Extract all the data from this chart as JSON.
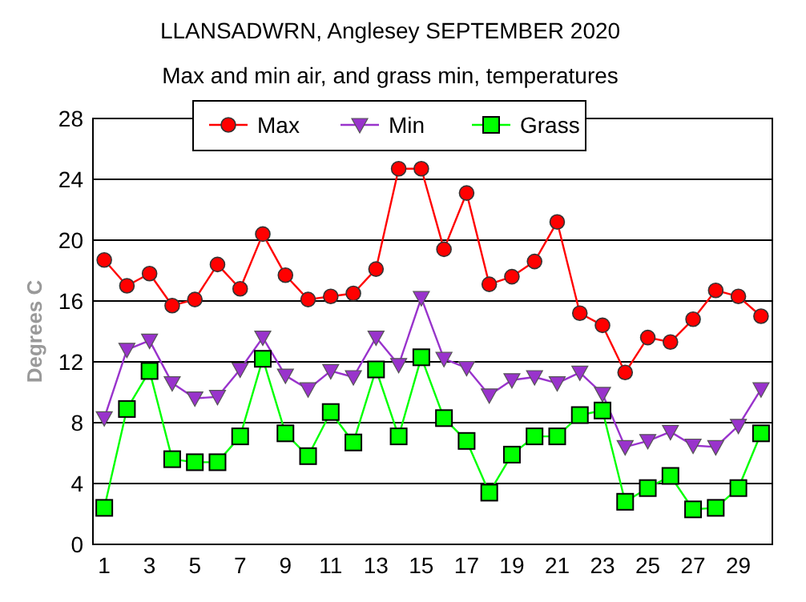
{
  "chart_data": {
    "type": "line",
    "title": "LLANSADWRN, Anglesey SEPTEMBER 2020",
    "subtitle": "Max and min air, and grass min, temperatures",
    "ylabel": "Degrees C",
    "x": [
      1,
      2,
      3,
      4,
      5,
      6,
      7,
      8,
      9,
      10,
      11,
      12,
      13,
      14,
      15,
      16,
      17,
      18,
      19,
      20,
      21,
      22,
      23,
      24,
      25,
      26,
      27,
      28,
      29,
      30
    ],
    "xlim": [
      0.5,
      30.5
    ],
    "xticks": [
      1,
      3,
      5,
      7,
      9,
      11,
      13,
      15,
      17,
      19,
      21,
      23,
      25,
      27,
      29
    ],
    "ylim": [
      0,
      28
    ],
    "yticks": [
      0,
      4,
      8,
      12,
      16,
      20,
      24,
      28
    ],
    "grid": "y",
    "legend": "top",
    "series": [
      {
        "name": "Max",
        "color": "#ff0000",
        "marker": "circle",
        "values": [
          18.7,
          17,
          17.8,
          15.7,
          16.1,
          18.4,
          16.8,
          20.4,
          17.7,
          16.1,
          16.3,
          16.5,
          18.1,
          24.7,
          24.7,
          19.4,
          23.1,
          17.1,
          17.6,
          18.6,
          21.2,
          15.2,
          14.4,
          11.3,
          13.6,
          13.3,
          14.8,
          16.7,
          16.3,
          15.0
        ]
      },
      {
        "name": "Min",
        "color": "#9933cc",
        "marker": "triangle",
        "values": [
          8.3,
          12.8,
          13.4,
          10.6,
          9.6,
          9.7,
          11.5,
          13.6,
          11.1,
          10.2,
          11.4,
          11.0,
          13.6,
          11.8,
          16.2,
          12.2,
          11.6,
          9.8,
          10.8,
          11.0,
          10.6,
          11.3,
          9.9,
          6.4,
          6.8,
          7.4,
          6.5,
          6.4,
          7.8,
          10.2
        ]
      },
      {
        "name": "Grass",
        "color": "#00ff00",
        "marker": "square",
        "values": [
          2.4,
          8.9,
          11.4,
          5.6,
          5.4,
          5.4,
          7.1,
          12.2,
          7.3,
          5.8,
          8.7,
          6.7,
          11.5,
          7.1,
          12.3,
          8.3,
          6.8,
          3.4,
          5.9,
          7.1,
          7.1,
          8.5,
          8.8,
          2.8,
          3.7,
          4.5,
          2.3,
          2.4,
          3.7,
          7.3
        ]
      }
    ]
  }
}
